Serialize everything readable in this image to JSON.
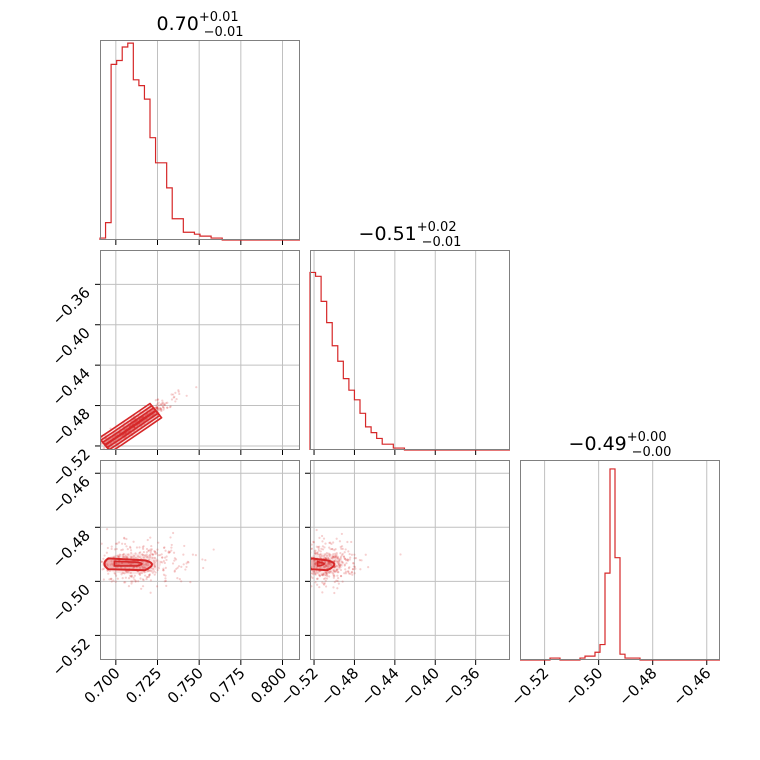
{
  "chart_data": {
    "type": "corner",
    "color": "#d62728",
    "grid": true,
    "params": [
      {
        "title": {
          "main": "0.70",
          "plus": "+0.01",
          "minus": "−0.01"
        },
        "range": [
          0.6905,
          0.8105
        ],
        "ticks": [
          0.7,
          0.725,
          0.75,
          0.775,
          0.8
        ],
        "tick_labels": [
          "0.700",
          "0.725",
          "0.750",
          "0.775",
          "0.800"
        ],
        "hist": {
          "bins": 36,
          "heights": [
            0.01,
            0.09,
            0.91,
            0.93,
            1.0,
            1.02,
            0.83,
            0.8,
            0.73,
            0.53,
            0.4,
            0.4,
            0.27,
            0.11,
            0.11,
            0.04,
            0.04,
            0.03,
            0.02,
            0.02,
            0.01,
            0.01,
            0,
            0,
            0,
            0,
            0,
            0,
            0,
            0,
            0,
            0,
            0,
            0,
            0,
            0
          ]
        }
      },
      {
        "title": {
          "main": "−0.51",
          "plus": "+0.02",
          "minus": "−0.01"
        },
        "range": [
          -0.524,
          -0.326
        ],
        "ticks": [
          -0.52,
          -0.48,
          -0.44,
          -0.4,
          -0.36
        ],
        "tick_labels": [
          "−0.52",
          "−0.48",
          "−0.44",
          "−0.40",
          "−0.36"
        ],
        "hist": {
          "bins": 36,
          "heights": [
            0.92,
            0.9,
            0.77,
            0.66,
            0.54,
            0.46,
            0.37,
            0.31,
            0.26,
            0.19,
            0.12,
            0.09,
            0.06,
            0.03,
            0.03,
            0.01,
            0.01,
            0,
            0,
            0,
            0,
            0,
            0,
            0,
            0,
            0,
            0,
            0,
            0,
            0,
            0,
            0,
            0,
            0,
            0,
            0
          ]
        }
      },
      {
        "title": {
          "main": "−0.49",
          "plus": "+0.00",
          "minus": "−0.00"
        },
        "range": [
          -0.5291,
          -0.4551
        ],
        "ticks": [
          -0.52,
          -0.5,
          -0.48,
          -0.46
        ],
        "tick_labels": [
          "−0.52",
          "−0.50",
          "−0.48",
          "−0.46"
        ],
        "hist": {
          "bins": 40,
          "heights": [
            0,
            0,
            0,
            0,
            0,
            0,
            0.01,
            0.01,
            0,
            0,
            0,
            0,
            0.01,
            0.02,
            0.02,
            0.04,
            0.08,
            0.45,
            0.99,
            0.53,
            0.03,
            0.01,
            0.01,
            0.01,
            0,
            0,
            0,
            0,
            0,
            0,
            0,
            0,
            0,
            0,
            0,
            0,
            0,
            0,
            0,
            0
          ]
        }
      }
    ],
    "joint": [
      {
        "pair": [
          0,
          1
        ],
        "spine": [
          [
            0.6935,
            -0.519
          ],
          [
            0.7,
            -0.512
          ],
          [
            0.708,
            -0.503
          ],
          [
            0.716,
            -0.494
          ],
          [
            0.724,
            -0.485
          ]
        ],
        "contour_half_widths": [
          0.0022,
          0.004,
          0.0058
        ],
        "scatter_center": [
          0.712,
          -0.498
        ],
        "scatter_spread": [
          0.011,
          0.009
        ]
      },
      {
        "pair": [
          0,
          2
        ],
        "core": {
          "x": [
            0.6955,
            0.7235
          ],
          "y": [
            -0.4955,
            -0.4915
          ]
        },
        "scatter_center": [
          0.712,
          -0.4935
        ],
        "scatter_spread": [
          0.012,
          0.004
        ]
      },
      {
        "pair": [
          1,
          2
        ],
        "core": {
          "x": [
            -0.5225,
            -0.497
          ],
          "y": [
            -0.4955,
            -0.4915
          ]
        },
        "scatter_center": [
          -0.505,
          -0.4935
        ],
        "scatter_spread": [
          0.012,
          0.004
        ]
      }
    ]
  }
}
